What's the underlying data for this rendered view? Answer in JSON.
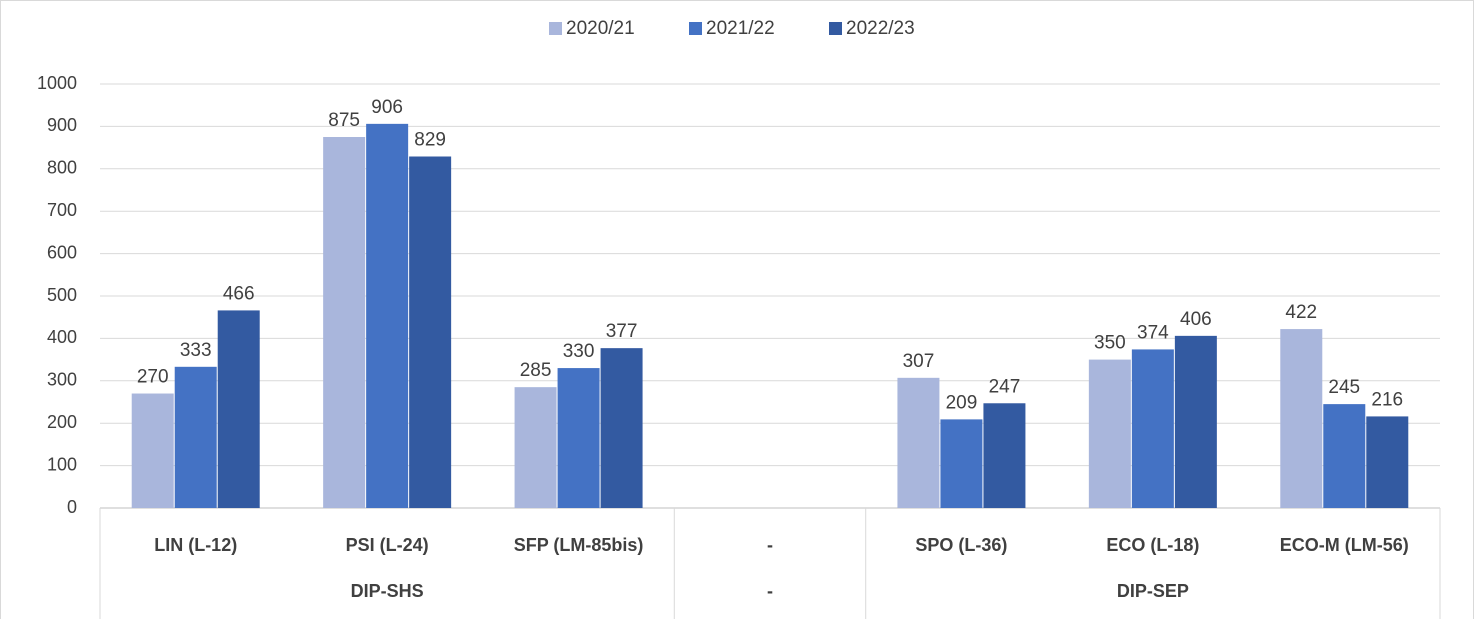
{
  "chart_data": {
    "type": "bar",
    "categories": [
      "LIN (L-12)",
      "PSI (L-24)",
      "SFP (LM-85bis)",
      "-",
      "SPO (L-36)",
      "ECO (L-18)",
      "ECO-M (LM-56)"
    ],
    "groups": [
      "DIP-SHS",
      "DIP-SHS",
      "DIP-SHS",
      "-",
      "DIP-SEP",
      "DIP-SEP",
      "DIP-SEP"
    ],
    "series": [
      {
        "name": "2020/21",
        "color": "#a9b6dc",
        "values": [
          270,
          875,
          285,
          null,
          307,
          350,
          422
        ]
      },
      {
        "name": "2021/22",
        "color": "#4472c4",
        "values": [
          333,
          906,
          330,
          null,
          209,
          374,
          245
        ]
      },
      {
        "name": "2022/23",
        "color": "#335aa1",
        "values": [
          466,
          829,
          377,
          null,
          247,
          406,
          216
        ]
      }
    ],
    "ylim": [
      0,
      1000
    ],
    "yticks": [
      0,
      100,
      200,
      300,
      400,
      500,
      600,
      700,
      800,
      900,
      1000
    ],
    "grid": true,
    "legend": "top"
  }
}
